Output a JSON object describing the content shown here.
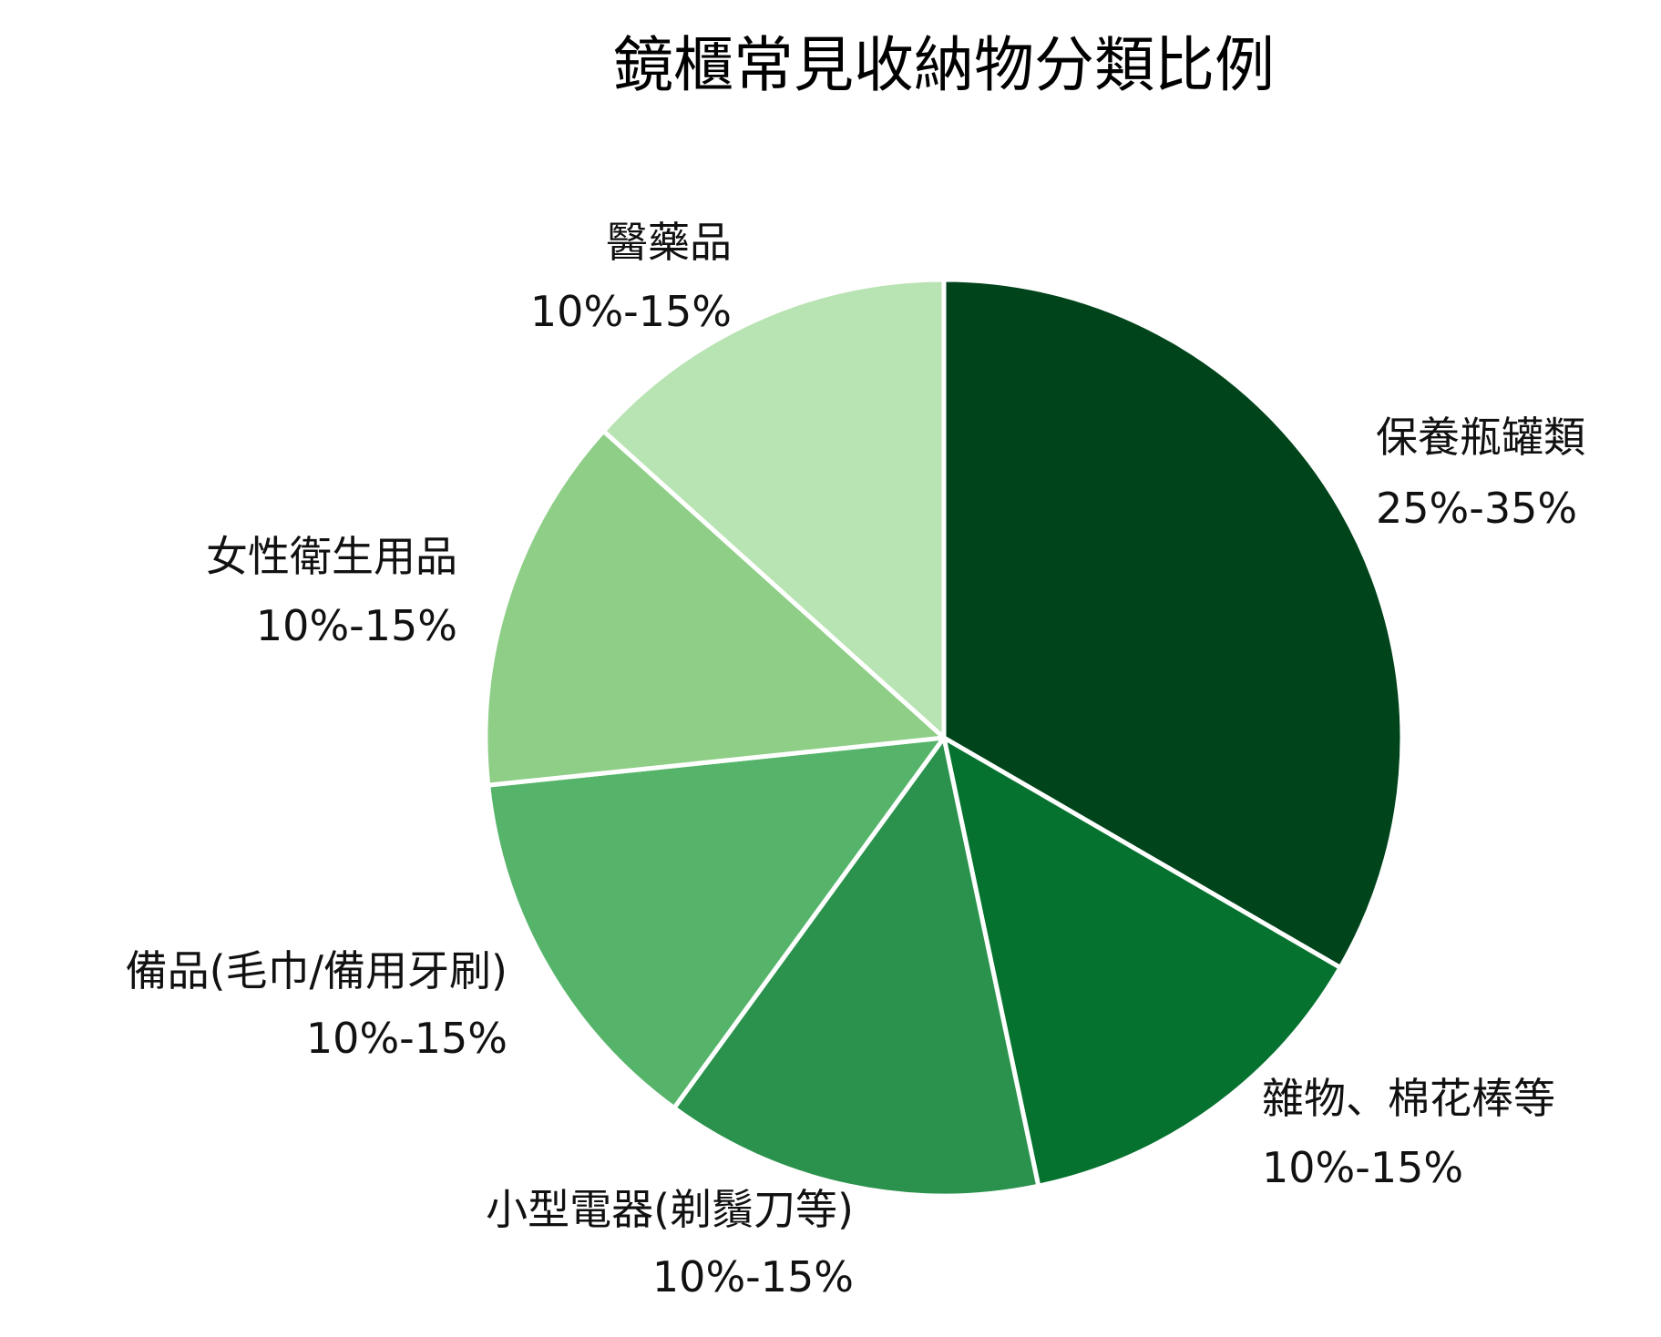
{
  "chart_data": {
    "type": "pie",
    "title": "鏡櫃常見收納物分類比例",
    "start_angle_deg": 0,
    "direction": "clockwise",
    "slices": [
      {
        "label": "保養瓶罐類",
        "range_text": "25%-35%",
        "value": 33.3,
        "color": "#00441b"
      },
      {
        "label": "雜物、棉花棒等",
        "range_text": "10%-15%",
        "value": 13.3,
        "color": "#06722f"
      },
      {
        "label": "小型電器(剃鬚刀等)",
        "range_text": "10%-15%",
        "value": 13.3,
        "color": "#2b924d"
      },
      {
        "label": "備品(毛巾/備用牙刷)",
        "range_text": "10%-15%",
        "value": 13.3,
        "color": "#55b46a"
      },
      {
        "label": "女性衛生用品",
        "range_text": "10%-15%",
        "value": 13.3,
        "color": "#8ece87"
      },
      {
        "label": "醫藥品",
        "range_text": "10%-15%",
        "value": 13.3,
        "color": "#b8e3b2"
      }
    ]
  }
}
